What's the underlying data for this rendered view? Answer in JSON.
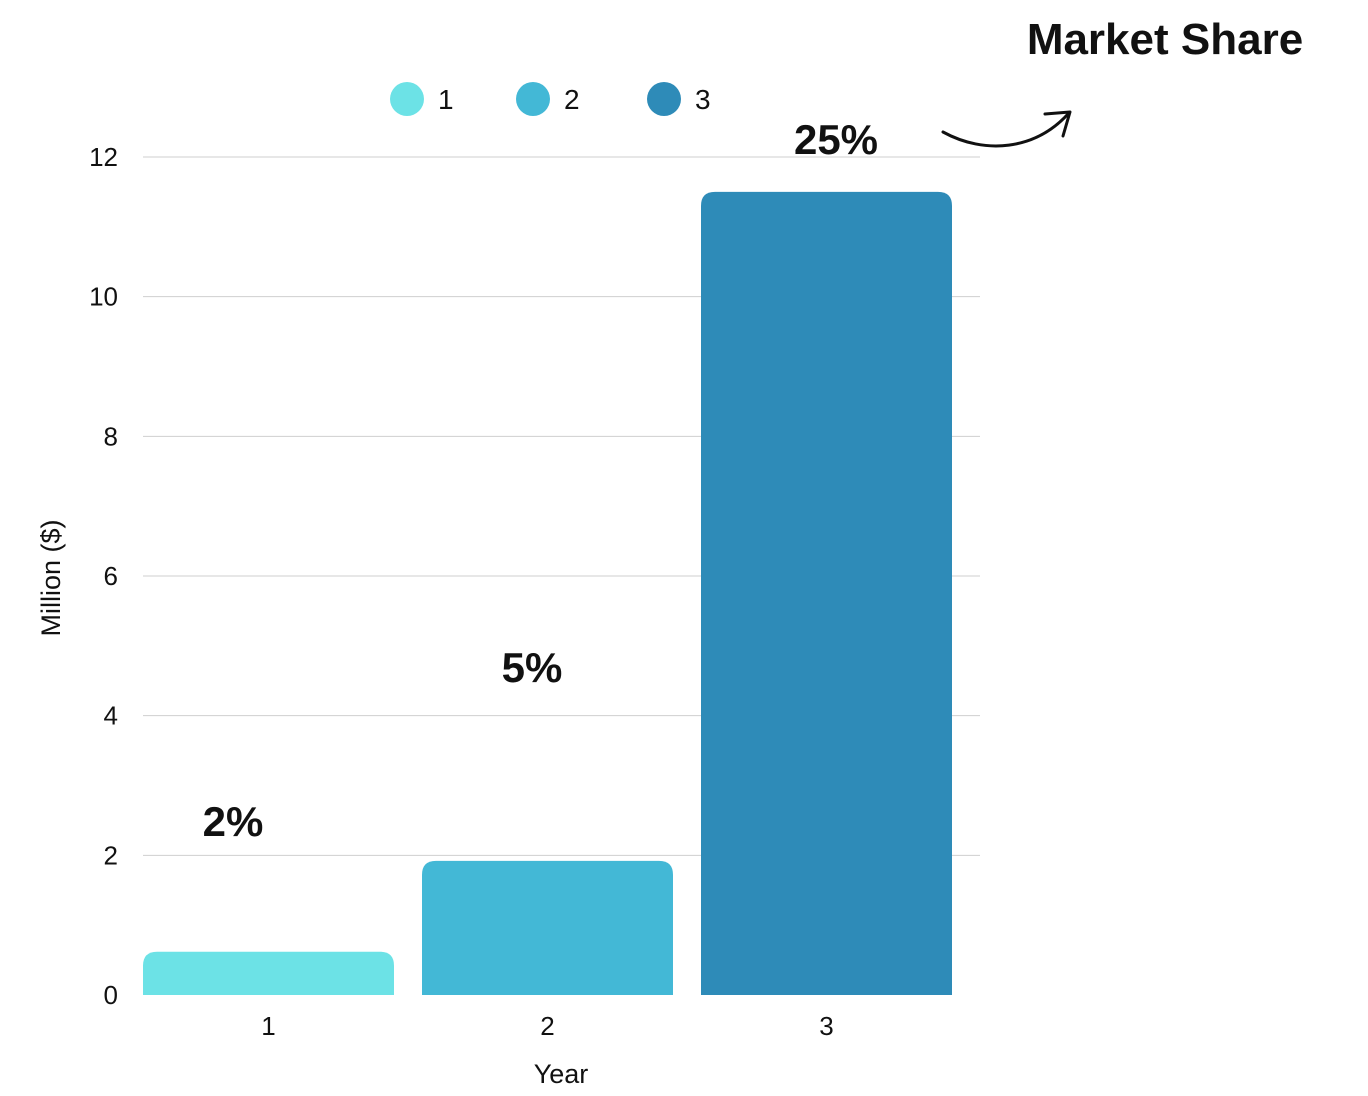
{
  "chart_data": {
    "type": "bar",
    "categories": [
      "1",
      "2",
      "3"
    ],
    "values": [
      0.62,
      1.92,
      11.5
    ],
    "data_labels": [
      "2%",
      "5%",
      "25%"
    ],
    "colors": [
      "#6ce2e6",
      "#43b8d6",
      "#2e8bb8"
    ],
    "xlabel": "Year",
    "ylabel": "Million ($)",
    "ylim": [
      0,
      12
    ],
    "yticks": [
      "0",
      "2",
      "4",
      "6",
      "8",
      "10",
      "12"
    ],
    "legend": {
      "placement": "top-center",
      "entries": [
        "1",
        "2",
        "3"
      ]
    },
    "grid": true,
    "annotation": "Market Share"
  }
}
